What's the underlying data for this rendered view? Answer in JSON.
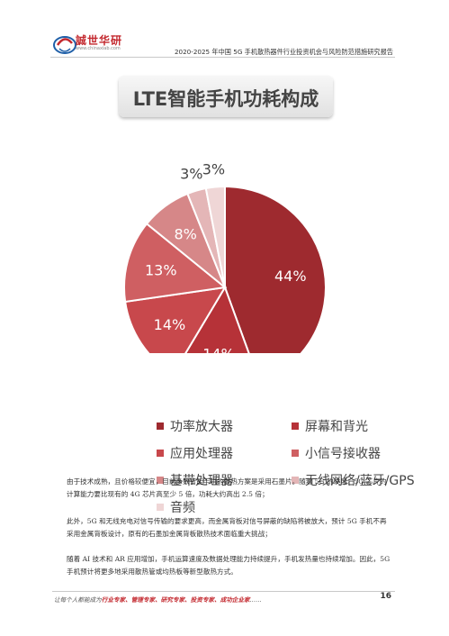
{
  "header": {
    "logo_text": "誠世华研",
    "logo_url": "www.chinaxiab.com",
    "report_title": "2020-2025 年中国 5G 手机散热器件行业投资机会与风险防范措施研究报告"
  },
  "chart_data": {
    "type": "pie",
    "title": "LTE智能手机功耗构成",
    "categories": [
      "功率放大器",
      "屏幕和背光",
      "应用处理器",
      "小信号接收器",
      "基带处理器",
      "无线网络/蓝牙/GPS",
      "音频"
    ],
    "values": [
      44,
      14,
      14,
      13,
      8,
      3,
      3
    ],
    "data_labels": [
      "44%",
      "14%",
      "14%",
      "13%",
      "8%",
      "3%",
      "3%"
    ],
    "colors": [
      "#9e2a2f",
      "#b63238",
      "#c8484c",
      "#cf5f62",
      "#d68788",
      "#e4b6b7",
      "#efd6d6"
    ],
    "legend_position": "bottom"
  },
  "paragraphs": [
    "由于技术成熟，且价格较便宜，目前多数智能手机的散热方案是采用石墨片。随着 5G 的发展，5G 芯片的计算能力要比现有的 4G 芯片高至少 5 倍，功耗大约高出 2.5 倍；",
    "此外，5G 和无线充电对信号传输的要求更高，而金属背板对信号屏蔽的缺陷将被放大，预计 5G 手机不再采用金属背板设计，原有的石墨加金属背板散热技术面临重大挑战；",
    "随着 AI 技术和 AR 应用增加，手机运算速度及数据处理能力持续提升，手机发热量也持续增加。因此，5G 手机预计将更多地采用散热管或均热板等新型散热方式。"
  ],
  "footer": {
    "prefix": "让每个人都能成为",
    "highlight": "行业专家、管理专家、研究专家、投资专家、成功企业家",
    "suffix": "……",
    "page_number": "16"
  }
}
